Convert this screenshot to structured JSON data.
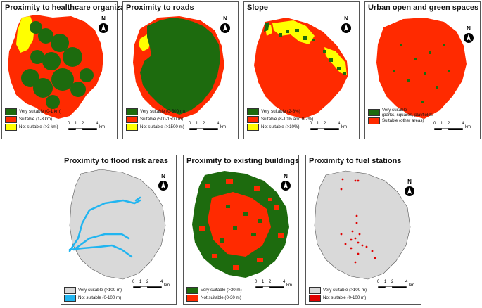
{
  "colors": {
    "very_suitable": "#1d6b0e",
    "suitable": "#ff2a00",
    "not_suitable_yellow": "#ffff00",
    "gray": "#d9d9d9",
    "river": "#21b5f0",
    "point": "#e00000"
  },
  "north_label": "N",
  "scale": {
    "ticks": [
      "0",
      "1",
      "2",
      "4"
    ],
    "unit": "km"
  },
  "panels": [
    {
      "title": "Proximity to healthcare organization",
      "legend": [
        {
          "color": "#1d6b0e",
          "label": "Very suitable (0-1 km)"
        },
        {
          "color": "#ff2a00",
          "label": "Suitable (1-3 km)"
        },
        {
          "color": "#ffff00",
          "label": "Not suitable (>3 km)"
        }
      ]
    },
    {
      "title": "Proximity to roads",
      "legend": [
        {
          "color": "#1d6b0e",
          "label": "Very suitable (0-500 m)"
        },
        {
          "color": "#ff2a00",
          "label": "Suitable (500-1500 m)"
        },
        {
          "color": "#ffff00",
          "label": "Not suitable (>1500 m)"
        }
      ]
    },
    {
      "title": "Slope",
      "legend": [
        {
          "color": "#1d6b0e",
          "label": "Very suitable (2-8%)"
        },
        {
          "color": "#ff2a00",
          "label": "Suitable (8-10% and 0-2%)"
        },
        {
          "color": "#ffff00",
          "label": "Not suitable (>10%)"
        }
      ]
    },
    {
      "title": "Urban open and green spaces",
      "legend": [
        {
          "color": "#1d6b0e",
          "label": "Very suitable",
          "sublabel": "(parks, squares, playfields"
        },
        {
          "color": "#ff2a00",
          "label": "Suitable (other areas)"
        }
      ]
    },
    {
      "title": "Proximity to flood risk areas",
      "legend": [
        {
          "color": "#d9d9d9",
          "label": "Very suitable (>100 m)"
        },
        {
          "color": "#21b5f0",
          "label": "Not suitable (0-100 m)"
        }
      ]
    },
    {
      "title": "Proximity to existing buildings",
      "legend": [
        {
          "color": "#1d6b0e",
          "label": "Very suitable (>30 m)"
        },
        {
          "color": "#ff2a00",
          "label": "Not suitable (0-30 m)"
        }
      ]
    },
    {
      "title": "Proximity to fuel stations",
      "legend": [
        {
          "color": "#d9d9d9",
          "label": "Very suitable (>100 m)"
        },
        {
          "color": "#e00000",
          "label": "Not suitable (0-100 m)"
        }
      ]
    }
  ]
}
